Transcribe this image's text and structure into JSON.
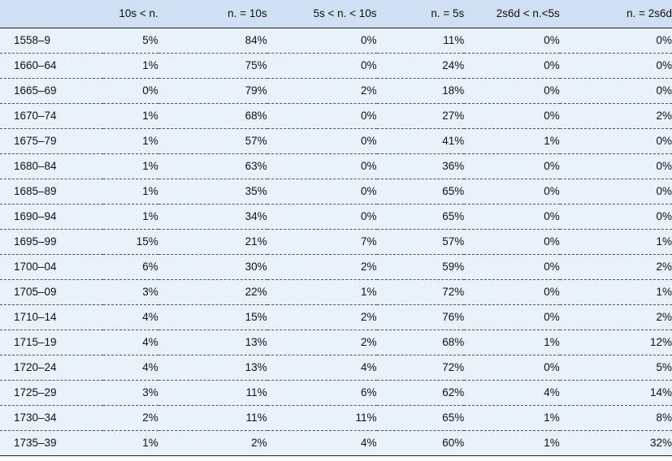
{
  "table": {
    "headers": [
      "",
      "10s < n.",
      "n. = 10s",
      "5s < n. < 10s",
      "n. = 5s",
      "2s6d < n.<5s",
      "n. = 2s6d"
    ],
    "rows": [
      [
        "1558–9",
        "5%",
        "84%",
        "0%",
        "11%",
        "0%",
        "0%"
      ],
      [
        "1660–64",
        "1%",
        "75%",
        "0%",
        "24%",
        "0%",
        "0%"
      ],
      [
        "1665–69",
        "0%",
        "79%",
        "2%",
        "18%",
        "0%",
        "0%"
      ],
      [
        "1670–74",
        "1%",
        "68%",
        "0%",
        "27%",
        "0%",
        "2%"
      ],
      [
        "1675–79",
        "1%",
        "57%",
        "0%",
        "41%",
        "1%",
        "0%"
      ],
      [
        "1680–84",
        "1%",
        "63%",
        "0%",
        "36%",
        "0%",
        "0%"
      ],
      [
        "1685–89",
        "1%",
        "35%",
        "0%",
        "65%",
        "0%",
        "0%"
      ],
      [
        "1690–94",
        "1%",
        "34%",
        "0%",
        "65%",
        "0%",
        "0%"
      ],
      [
        "1695–99",
        "15%",
        "21%",
        "7%",
        "57%",
        "0%",
        "1%"
      ],
      [
        "1700–04",
        "6%",
        "30%",
        "2%",
        "59%",
        "0%",
        "2%"
      ],
      [
        "1705–09",
        "3%",
        "22%",
        "1%",
        "72%",
        "0%",
        "1%"
      ],
      [
        "1710–14",
        "4%",
        "15%",
        "2%",
        "76%",
        "0%",
        "2%"
      ],
      [
        "1715–19",
        "4%",
        "13%",
        "2%",
        "68%",
        "1%",
        "12%"
      ],
      [
        "1720–24",
        "4%",
        "13%",
        "4%",
        "72%",
        "0%",
        "5%"
      ],
      [
        "1725–29",
        "3%",
        "11%",
        "6%",
        "62%",
        "4%",
        "14%"
      ],
      [
        "1730–34",
        "2%",
        "11%",
        "11%",
        "65%",
        "1%",
        "8%"
      ],
      [
        "1735–39",
        "1%",
        "2%",
        "4%",
        "60%",
        "1%",
        "32%"
      ]
    ]
  },
  "colors": {
    "header_bg": "#cfe0f4",
    "row_bg": "#e9f1fb",
    "rule": "#222222"
  }
}
